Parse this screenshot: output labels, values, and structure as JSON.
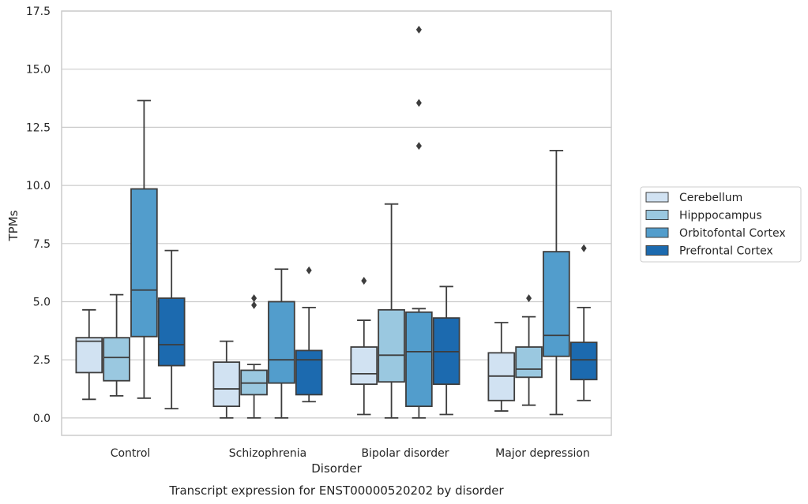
{
  "chart_data": {
    "type": "boxplot",
    "caption": "Transcript expression for ENST00000520202 by disorder",
    "xlabel": "Disorder",
    "ylabel": "TPMs",
    "ylim": [
      -0.75,
      17.5
    ],
    "yticks": [
      "0.0",
      "2.5",
      "5.0",
      "7.5",
      "10.0",
      "12.5",
      "15.0",
      "17.5"
    ],
    "grid": true,
    "legend_position": "right",
    "categories": [
      "Control",
      "Schizophrenia",
      "Bipolar disorder",
      "Major depression"
    ],
    "series": [
      {
        "name": "Cerebellum",
        "color": "#d1e2f2",
        "boxes": [
          {
            "whislo": 0.8,
            "q1": 1.95,
            "med": 3.3,
            "q3": 3.45,
            "whishi": 4.65,
            "fliers": []
          },
          {
            "whislo": 0.0,
            "q1": 0.5,
            "med": 1.25,
            "q3": 2.4,
            "whishi": 3.3,
            "fliers": []
          },
          {
            "whislo": 0.15,
            "q1": 1.45,
            "med": 1.9,
            "q3": 3.05,
            "whishi": 4.2,
            "fliers": [
              5.9
            ]
          },
          {
            "whislo": 0.3,
            "q1": 0.75,
            "med": 1.8,
            "q3": 2.8,
            "whishi": 4.1,
            "fliers": []
          }
        ]
      },
      {
        "name": "Hipppocampus",
        "color": "#9ac8e0",
        "boxes": [
          {
            "whislo": 0.95,
            "q1": 1.6,
            "med": 2.6,
            "q3": 3.45,
            "whishi": 5.3,
            "fliers": []
          },
          {
            "whislo": 0.0,
            "q1": 1.0,
            "med": 1.5,
            "q3": 2.05,
            "whishi": 2.3,
            "fliers": [
              4.85,
              5.15
            ]
          },
          {
            "whislo": 0.0,
            "q1": 1.55,
            "med": 2.7,
            "q3": 4.65,
            "whishi": 9.2,
            "fliers": []
          },
          {
            "whislo": 0.55,
            "q1": 1.75,
            "med": 2.1,
            "q3": 3.05,
            "whishi": 4.35,
            "fliers": [
              5.15
            ]
          }
        ]
      },
      {
        "name": "Orbitofontal Cortex",
        "color": "#529dcc",
        "boxes": [
          {
            "whislo": 0.85,
            "q1": 3.5,
            "med": 5.5,
            "q3": 9.85,
            "whishi": 13.65,
            "fliers": []
          },
          {
            "whislo": 0.0,
            "q1": 1.5,
            "med": 2.5,
            "q3": 5.0,
            "whishi": 6.4,
            "fliers": []
          },
          {
            "whislo": 0.0,
            "q1": 0.5,
            "med": 2.85,
            "q3": 4.55,
            "whishi": 4.7,
            "fliers": [
              11.7,
              13.55,
              16.7
            ]
          },
          {
            "whislo": 0.15,
            "q1": 2.65,
            "med": 3.55,
            "q3": 7.15,
            "whishi": 11.5,
            "fliers": []
          }
        ]
      },
      {
        "name": "Prefrontal Cortex",
        "color": "#1c6aaf",
        "boxes": [
          {
            "whislo": 0.4,
            "q1": 2.25,
            "med": 3.15,
            "q3": 5.15,
            "whishi": 7.2,
            "fliers": []
          },
          {
            "whislo": 0.7,
            "q1": 1.0,
            "med": 2.5,
            "q3": 2.9,
            "whishi": 4.75,
            "fliers": [
              6.35
            ]
          },
          {
            "whislo": 0.15,
            "q1": 1.45,
            "med": 2.85,
            "q3": 4.3,
            "whishi": 5.65,
            "fliers": []
          },
          {
            "whislo": 0.75,
            "q1": 1.65,
            "med": 2.5,
            "q3": 3.25,
            "whishi": 4.75,
            "fliers": [
              7.3
            ]
          }
        ]
      }
    ]
  }
}
